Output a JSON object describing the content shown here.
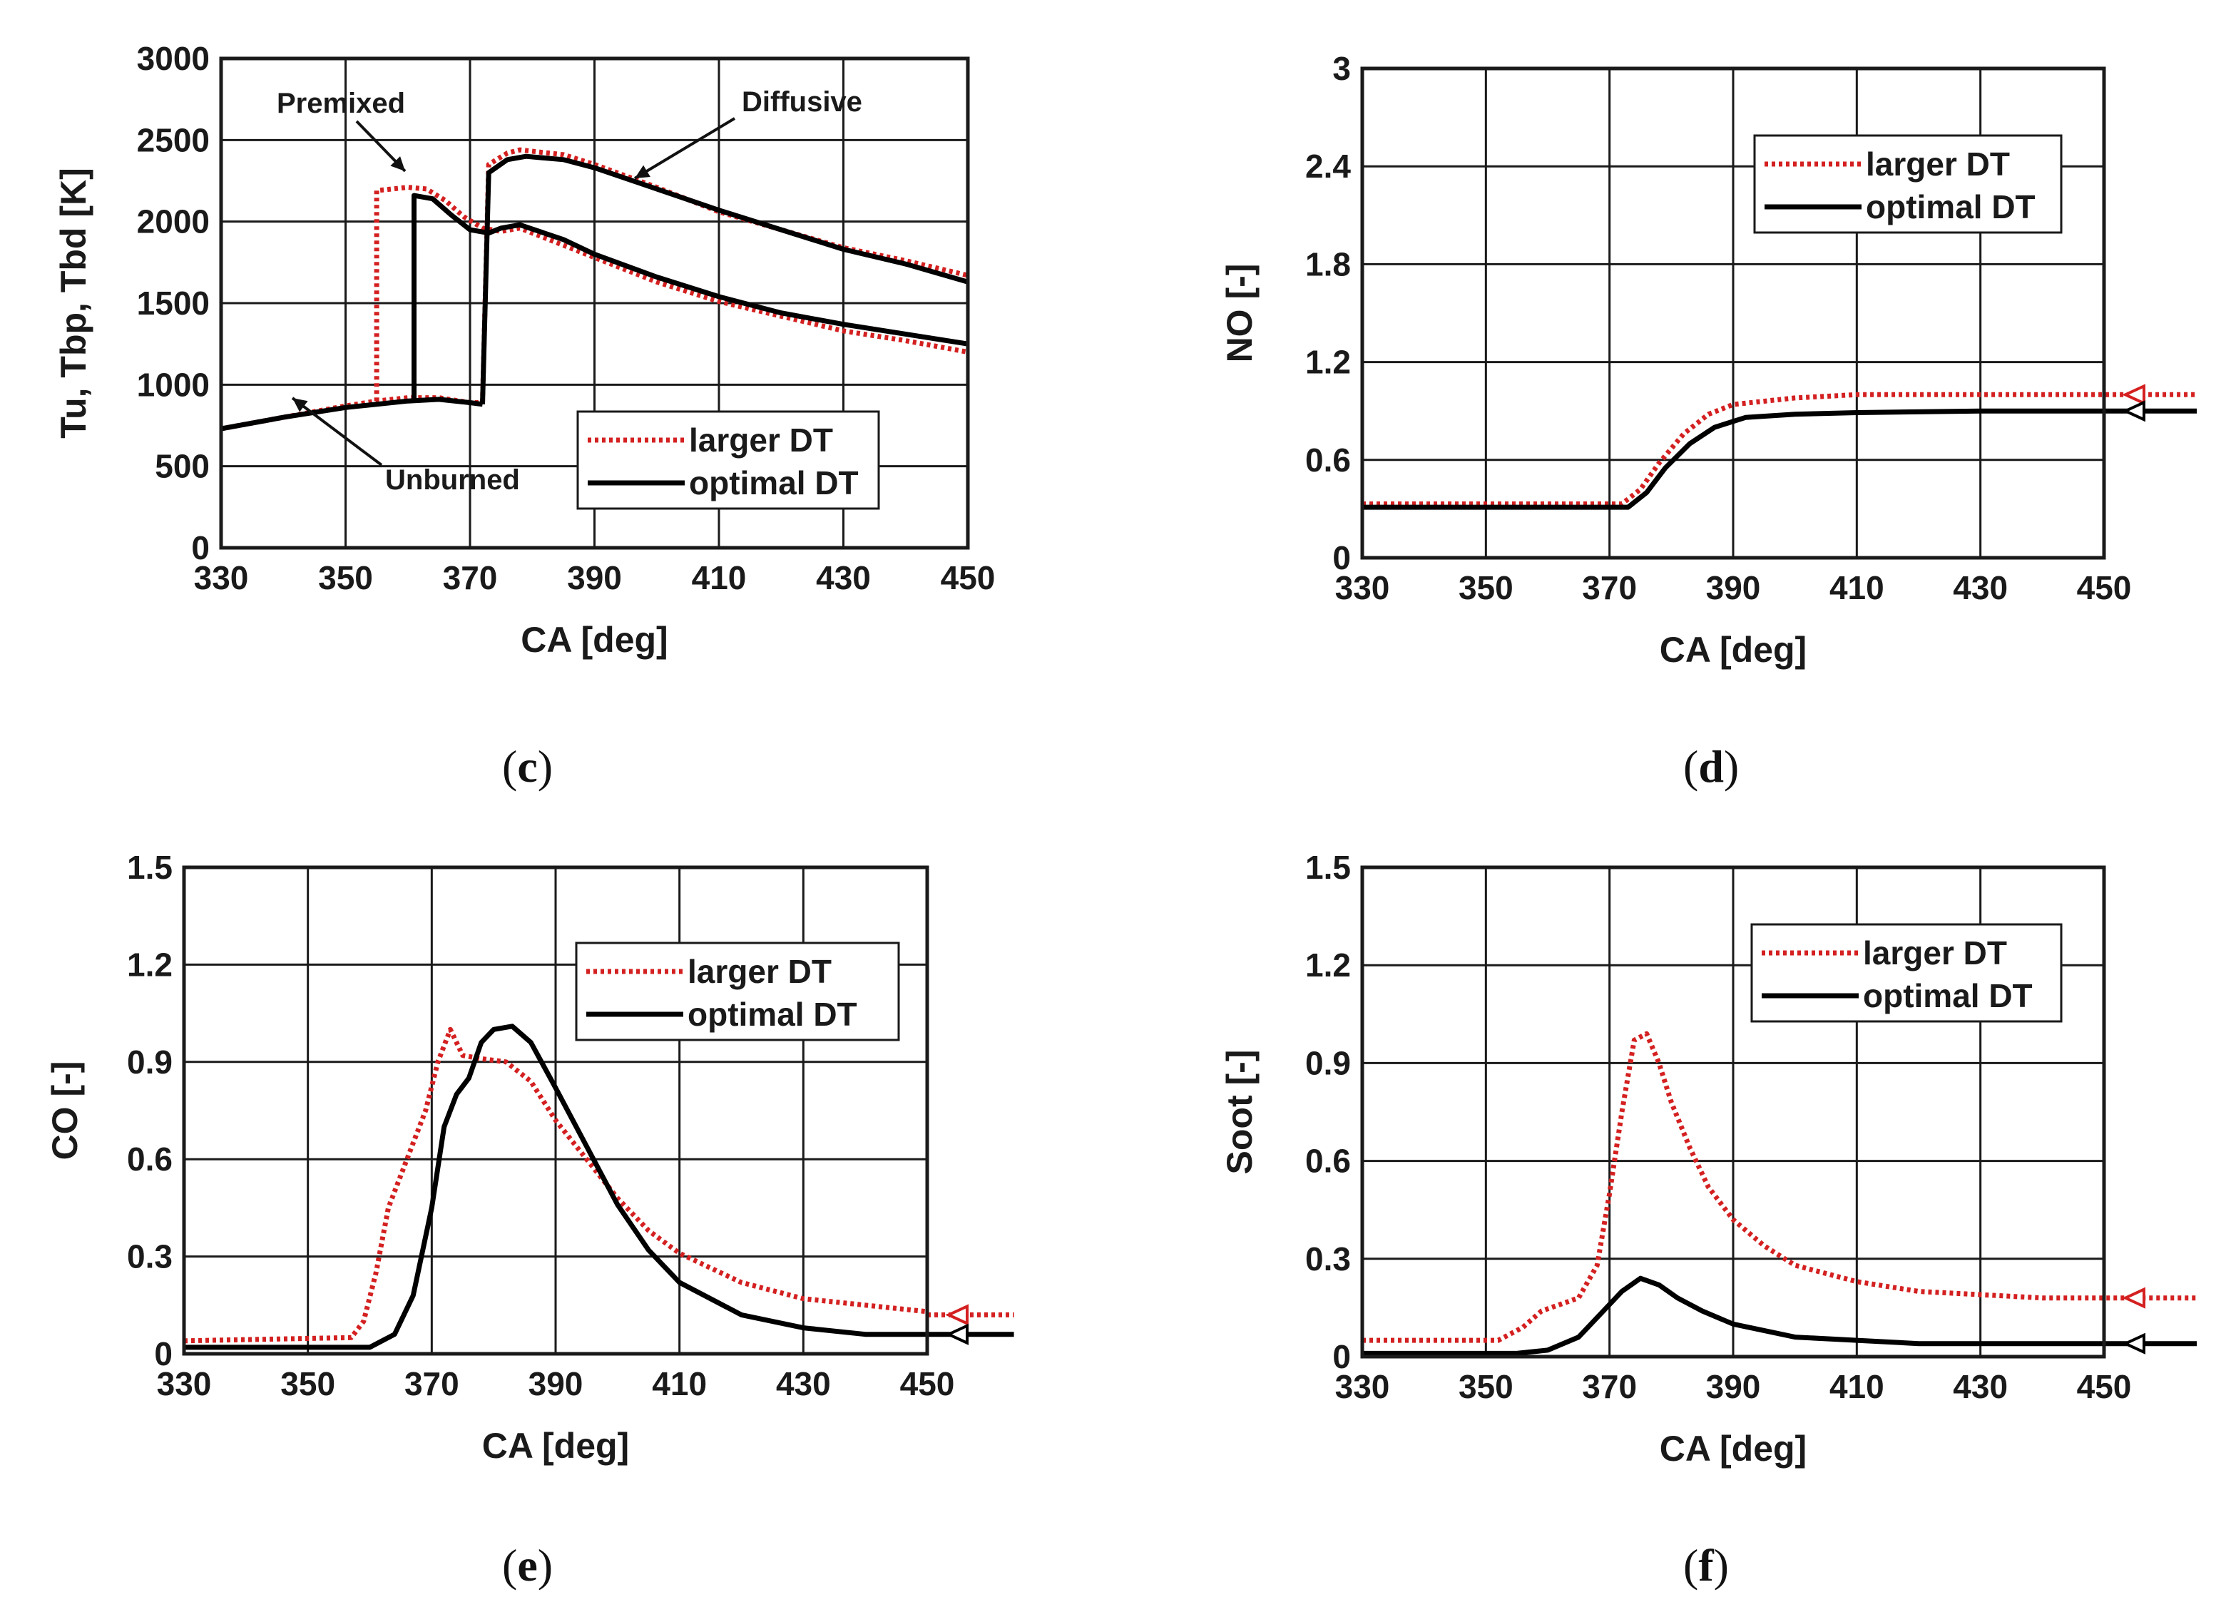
{
  "legend": {
    "larger": "larger DT",
    "optimal": "optimal DT"
  },
  "colors": {
    "larger": "#d42020",
    "optimal": "#000000",
    "grid": "#1a1a1a"
  },
  "panel_labels": {
    "c": "c",
    "d": "d",
    "e": "e",
    "f": "f"
  },
  "chart_data": [
    {
      "id": "c",
      "type": "line",
      "xlabel": "CA [deg]",
      "ylabel": "Tu, Tbp, Tbd [K]",
      "xlim": [
        330,
        450
      ],
      "ylim": [
        0,
        3000
      ],
      "xticks": [
        330,
        350,
        370,
        390,
        410,
        430,
        450
      ],
      "yticks": [
        0,
        500,
        1000,
        1500,
        2000,
        2500,
        3000
      ],
      "ytick_labels": [
        "0",
        "500",
        "1000",
        "1500",
        "2000",
        "2500",
        "3000"
      ],
      "grid": true,
      "legend_position": "bottom-right",
      "annotations": [
        "Premixed",
        "Diffusive",
        "Unburned"
      ],
      "series": [
        {
          "name": "larger DT",
          "key": "larger",
          "segments": [
            [
              [
                330,
                730
              ],
              [
                340,
                800
              ],
              [
                350,
                870
              ],
              [
                355,
                900
              ],
              [
                360,
                920
              ],
              [
                365,
                920
              ],
              [
                370,
                890
              ],
              [
                372,
                890
              ]
            ],
            [
              [
                355,
                900
              ],
              [
                355,
                2190
              ],
              [
                360,
                2210
              ],
              [
                363,
                2200
              ],
              [
                366,
                2130
              ],
              [
                369,
                2030
              ],
              [
                372,
                1960
              ],
              [
                375,
                1940
              ],
              [
                378,
                1960
              ],
              [
                382,
                1900
              ],
              [
                390,
                1780
              ],
              [
                400,
                1630
              ],
              [
                410,
                1510
              ],
              [
                420,
                1420
              ],
              [
                430,
                1330
              ],
              [
                440,
                1270
              ],
              [
                450,
                1200
              ]
            ],
            [
              [
                372,
                890
              ],
              [
                373,
                2350
              ],
              [
                376,
                2420
              ],
              [
                378,
                2440
              ],
              [
                385,
                2410
              ],
              [
                390,
                2350
              ],
              [
                400,
                2210
              ],
              [
                410,
                2060
              ],
              [
                420,
                1950
              ],
              [
                430,
                1840
              ],
              [
                440,
                1760
              ],
              [
                450,
                1670
              ]
            ]
          ]
        },
        {
          "name": "optimal DT",
          "key": "optimal",
          "segments": [
            [
              [
                330,
                730
              ],
              [
                340,
                800
              ],
              [
                350,
                860
              ],
              [
                360,
                900
              ],
              [
                365,
                910
              ],
              [
                370,
                890
              ],
              [
                372,
                880
              ]
            ],
            [
              [
                361,
                900
              ],
              [
                361,
                2160
              ],
              [
                364,
                2140
              ],
              [
                367,
                2040
              ],
              [
                370,
                1950
              ],
              [
                373,
                1930
              ],
              [
                375,
                1960
              ],
              [
                378,
                1980
              ],
              [
                385,
                1890
              ],
              [
                390,
                1800
              ],
              [
                400,
                1660
              ],
              [
                410,
                1540
              ],
              [
                420,
                1440
              ],
              [
                430,
                1370
              ],
              [
                440,
                1310
              ],
              [
                450,
                1250
              ]
            ],
            [
              [
                372,
                880
              ],
              [
                373,
                2300
              ],
              [
                376,
                2380
              ],
              [
                379,
                2400
              ],
              [
                385,
                2380
              ],
              [
                390,
                2330
              ],
              [
                400,
                2200
              ],
              [
                410,
                2070
              ],
              [
                420,
                1950
              ],
              [
                430,
                1830
              ],
              [
                440,
                1740
              ],
              [
                450,
                1630
              ]
            ]
          ]
        }
      ]
    },
    {
      "id": "d",
      "type": "line",
      "xlabel": "CA [deg]",
      "ylabel": "NO [-]",
      "xlim": [
        330,
        450
      ],
      "ylim": [
        0,
        3
      ],
      "xticks": [
        330,
        350,
        370,
        390,
        410,
        430,
        450
      ],
      "yticks": [
        0,
        0.6,
        1.2,
        1.8,
        2.4,
        3
      ],
      "ytick_labels": [
        "0",
        "0.6",
        "1.2",
        "1.8",
        "2.4",
        "3"
      ],
      "grid": true,
      "legend_position": "top-right",
      "end_markers": {
        "larger": 1.0,
        "optimal": 0.9
      },
      "series": [
        {
          "name": "larger DT",
          "key": "larger",
          "segments": [
            [
              [
                330,
                0.33
              ],
              [
                372,
                0.33
              ],
              [
                375,
                0.42
              ],
              [
                378,
                0.58
              ],
              [
                382,
                0.76
              ],
              [
                386,
                0.88
              ],
              [
                390,
                0.94
              ],
              [
                400,
                0.98
              ],
              [
                410,
                1.0
              ],
              [
                430,
                1.0
              ],
              [
                450,
                1.0
              ],
              [
                465,
                1.0
              ]
            ]
          ]
        },
        {
          "name": "optimal DT",
          "key": "optimal",
          "segments": [
            [
              [
                330,
                0.31
              ],
              [
                373,
                0.31
              ],
              [
                376,
                0.4
              ],
              [
                379,
                0.55
              ],
              [
                383,
                0.7
              ],
              [
                387,
                0.8
              ],
              [
                392,
                0.86
              ],
              [
                400,
                0.88
              ],
              [
                410,
                0.89
              ],
              [
                430,
                0.9
              ],
              [
                450,
                0.9
              ],
              [
                465,
                0.9
              ]
            ]
          ]
        }
      ]
    },
    {
      "id": "e",
      "type": "line",
      "xlabel": "CA [deg]",
      "ylabel": "CO [-]",
      "xlim": [
        330,
        450
      ],
      "ylim": [
        0,
        1.5
      ],
      "xticks": [
        330,
        350,
        370,
        390,
        410,
        430,
        450
      ],
      "yticks": [
        0,
        0.3,
        0.6,
        0.9,
        1.2,
        1.5
      ],
      "ytick_labels": [
        "0",
        "0.3",
        "0.6",
        "0.9",
        "1.2",
        "1.5"
      ],
      "grid": true,
      "legend_position": "top-right",
      "end_markers": {
        "larger": 0.12,
        "optimal": 0.06
      },
      "series": [
        {
          "name": "larger DT",
          "key": "larger",
          "segments": [
            [
              [
                330,
                0.04
              ],
              [
                357,
                0.05
              ],
              [
                359,
                0.1
              ],
              [
                361,
                0.25
              ],
              [
                363,
                0.45
              ],
              [
                366,
                0.6
              ],
              [
                369,
                0.75
              ],
              [
                371,
                0.9
              ],
              [
                373,
                1.0
              ],
              [
                375,
                0.92
              ],
              [
                378,
                0.91
              ],
              [
                382,
                0.9
              ],
              [
                386,
                0.84
              ],
              [
                390,
                0.72
              ],
              [
                395,
                0.6
              ],
              [
                400,
                0.48
              ],
              [
                405,
                0.38
              ],
              [
                410,
                0.31
              ],
              [
                420,
                0.22
              ],
              [
                430,
                0.17
              ],
              [
                440,
                0.15
              ],
              [
                450,
                0.13
              ]
            ],
            [
              [
                450,
                0.12
              ],
              [
                464,
                0.12
              ]
            ]
          ]
        },
        {
          "name": "optimal DT",
          "key": "optimal",
          "segments": [
            [
              [
                330,
                0.02
              ],
              [
                360,
                0.02
              ],
              [
                364,
                0.06
              ],
              [
                367,
                0.18
              ],
              [
                370,
                0.45
              ],
              [
                372,
                0.7
              ],
              [
                374,
                0.8
              ],
              [
                376,
                0.85
              ],
              [
                378,
                0.96
              ],
              [
                380,
                1.0
              ],
              [
                383,
                1.01
              ],
              [
                386,
                0.96
              ],
              [
                390,
                0.82
              ],
              [
                395,
                0.64
              ],
              [
                400,
                0.46
              ],
              [
                405,
                0.32
              ],
              [
                410,
                0.22
              ],
              [
                420,
                0.12
              ],
              [
                430,
                0.08
              ],
              [
                440,
                0.06
              ],
              [
                450,
                0.06
              ],
              [
                464,
                0.06
              ]
            ]
          ]
        }
      ]
    },
    {
      "id": "f",
      "type": "line",
      "xlabel": "CA [deg]",
      "ylabel": "Soot [-]",
      "xlim": [
        330,
        450
      ],
      "ylim": [
        0,
        1.5
      ],
      "xticks": [
        330,
        350,
        370,
        390,
        410,
        430,
        450
      ],
      "yticks": [
        0,
        0.3,
        0.6,
        0.9,
        1.2,
        1.5
      ],
      "ytick_labels": [
        "0",
        "0.3",
        "0.6",
        "0.9",
        "1.2",
        "1.5"
      ],
      "grid": true,
      "legend_position": "top-right",
      "end_markers": {
        "larger": 0.18,
        "optimal": 0.04
      },
      "series": [
        {
          "name": "larger DT",
          "key": "larger",
          "segments": [
            [
              [
                330,
                0.05
              ],
              [
                352,
                0.05
              ],
              [
                356,
                0.09
              ],
              [
                359,
                0.14
              ],
              [
                362,
                0.16
              ],
              [
                365,
                0.18
              ],
              [
                368,
                0.28
              ],
              [
                370,
                0.5
              ],
              [
                372,
                0.75
              ],
              [
                374,
                0.97
              ],
              [
                376,
                0.99
              ],
              [
                378,
                0.9
              ],
              [
                380,
                0.78
              ],
              [
                383,
                0.64
              ],
              [
                386,
                0.52
              ],
              [
                390,
                0.42
              ],
              [
                395,
                0.34
              ],
              [
                400,
                0.28
              ],
              [
                410,
                0.23
              ],
              [
                420,
                0.2
              ],
              [
                430,
                0.19
              ],
              [
                440,
                0.18
              ],
              [
                450,
                0.18
              ],
              [
                465,
                0.18
              ]
            ]
          ]
        },
        {
          "name": "optimal DT",
          "key": "optimal",
          "segments": [
            [
              [
                330,
                0.01
              ],
              [
                355,
                0.01
              ],
              [
                360,
                0.02
              ],
              [
                365,
                0.06
              ],
              [
                369,
                0.14
              ],
              [
                372,
                0.2
              ],
              [
                375,
                0.24
              ],
              [
                378,
                0.22
              ],
              [
                381,
                0.18
              ],
              [
                385,
                0.14
              ],
              [
                390,
                0.1
              ],
              [
                400,
                0.06
              ],
              [
                410,
                0.05
              ],
              [
                420,
                0.04
              ],
              [
                430,
                0.04
              ],
              [
                450,
                0.04
              ],
              [
                465,
                0.04
              ]
            ]
          ]
        }
      ]
    }
  ]
}
